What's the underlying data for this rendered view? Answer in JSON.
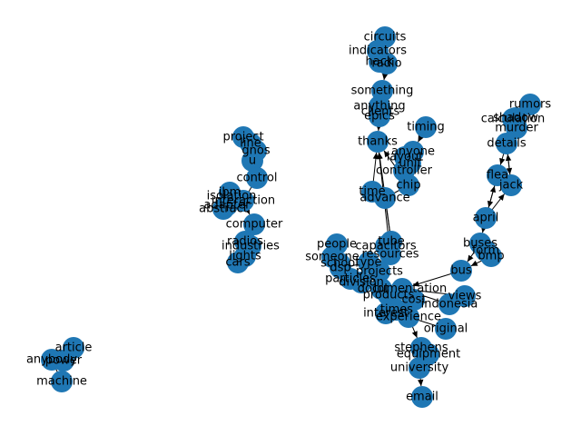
{
  "colors": {
    "node_fill": "#1f77b4",
    "edge": "#000000",
    "label": "#000000",
    "background": "#ffffff"
  },
  "graph": {
    "type": "directed-network",
    "nodes": [
      {
        "id": "circuits",
        "label": "circuits"
      },
      {
        "id": "indicators",
        "label": "indicators"
      },
      {
        "id": "hack",
        "label": "hack"
      },
      {
        "id": "radio",
        "label": "radio"
      },
      {
        "id": "something",
        "label": "something"
      },
      {
        "id": "anything",
        "label": "anything"
      },
      {
        "id": "clients",
        "label": "clients"
      },
      {
        "id": "epics",
        "label": "epics"
      },
      {
        "id": "timing",
        "label": "timing"
      },
      {
        "id": "thanks",
        "label": "thanks"
      },
      {
        "id": "anyone",
        "label": "anyone"
      },
      {
        "id": "layout",
        "label": "layout"
      },
      {
        "id": "unit",
        "label": "unit"
      },
      {
        "id": "controller",
        "label": "controller"
      },
      {
        "id": "chip",
        "label": "chip"
      },
      {
        "id": "time",
        "label": "time"
      },
      {
        "id": "advance",
        "label": "advance"
      },
      {
        "id": "rumors",
        "label": "rumors"
      },
      {
        "id": "calculation",
        "label": "calculation"
      },
      {
        "id": "shadow",
        "label": "shadow"
      },
      {
        "id": "murder",
        "label": "murder"
      },
      {
        "id": "details",
        "label": "details"
      },
      {
        "id": "flea",
        "label": "flea"
      },
      {
        "id": "jack",
        "label": "jack"
      },
      {
        "id": "april",
        "label": "april"
      },
      {
        "id": "buses",
        "label": "buses"
      },
      {
        "id": "form",
        "label": "form"
      },
      {
        "id": "bmp",
        "label": "bmp"
      },
      {
        "id": "bus",
        "label": "bus"
      },
      {
        "id": "project",
        "label": "project"
      },
      {
        "id": "line",
        "label": "line"
      },
      {
        "id": "gnos",
        "label": "gnos"
      },
      {
        "id": "u",
        "label": "u"
      },
      {
        "id": "control",
        "label": "control"
      },
      {
        "id": "ibm",
        "label": "ibm"
      },
      {
        "id": "isolation",
        "label": "isolation"
      },
      {
        "id": "interaction",
        "label": "interaction"
      },
      {
        "id": "adapter",
        "label": "adapter"
      },
      {
        "id": "abstract",
        "label": "abstract"
      },
      {
        "id": "computer",
        "label": "computer"
      },
      {
        "id": "radios",
        "label": "radios"
      },
      {
        "id": "industries",
        "label": "industries"
      },
      {
        "id": "lights",
        "label": "lights"
      },
      {
        "id": "cars",
        "label": "cars"
      },
      {
        "id": "people",
        "label": "people"
      },
      {
        "id": "tube",
        "label": "tube"
      },
      {
        "id": "capacitors",
        "label": "capacitors"
      },
      {
        "id": "resources",
        "label": "resources"
      },
      {
        "id": "someone",
        "label": "someone"
      },
      {
        "id": "school",
        "label": "school"
      },
      {
        "id": "dsp",
        "label": "dsp"
      },
      {
        "id": "type",
        "label": "type"
      },
      {
        "id": "projects",
        "label": "projects"
      },
      {
        "id": "particles",
        "label": "particles"
      },
      {
        "id": "division",
        "label": "division"
      },
      {
        "id": "documentation",
        "label": "documentation"
      },
      {
        "id": "lot",
        "label": "lot"
      },
      {
        "id": "views",
        "label": "views"
      },
      {
        "id": "products",
        "label": "products"
      },
      {
        "id": "cost",
        "label": "cost"
      },
      {
        "id": "indonesia",
        "label": "indonesia"
      },
      {
        "id": "times",
        "label": "times"
      },
      {
        "id": "interest",
        "label": "interest"
      },
      {
        "id": "experience",
        "label": "experience"
      },
      {
        "id": "original",
        "label": "original"
      },
      {
        "id": "stephens",
        "label": "stephens"
      },
      {
        "id": "equipment",
        "label": "equipment"
      },
      {
        "id": "university",
        "label": "university"
      },
      {
        "id": "email",
        "label": "email"
      },
      {
        "id": "article",
        "label": "article"
      },
      {
        "id": "anybody",
        "label": "anybody"
      },
      {
        "id": "power",
        "label": "power"
      },
      {
        "id": "machine",
        "label": "machine"
      }
    ],
    "edges": [
      {
        "source": "circuits",
        "target": "indicators",
        "arrow": false
      },
      {
        "source": "indicators",
        "target": "hack",
        "arrow": false
      },
      {
        "source": "hack",
        "target": "radio",
        "arrow": false
      },
      {
        "source": "radio",
        "target": "something",
        "arrow": true
      },
      {
        "source": "something",
        "target": "anything",
        "arrow": false
      },
      {
        "source": "anything",
        "target": "clients",
        "arrow": false
      },
      {
        "source": "clients",
        "target": "epics",
        "arrow": false
      },
      {
        "source": "epics",
        "target": "thanks",
        "arrow": true
      },
      {
        "source": "timing",
        "target": "anyone",
        "arrow": true
      },
      {
        "source": "anyone",
        "target": "layout",
        "arrow": false
      },
      {
        "source": "layout",
        "target": "unit",
        "arrow": false
      },
      {
        "source": "unit",
        "target": "controller",
        "arrow": false
      },
      {
        "source": "controller",
        "target": "chip",
        "arrow": false
      },
      {
        "source": "chip",
        "target": "thanks",
        "arrow": true
      },
      {
        "source": "chip",
        "target": "advance",
        "arrow": false
      },
      {
        "source": "time",
        "target": "thanks",
        "arrow": true
      },
      {
        "source": "time",
        "target": "advance",
        "arrow": false
      },
      {
        "source": "advance",
        "target": "tube",
        "arrow": false
      },
      {
        "source": "tube",
        "target": "thanks",
        "arrow": true
      },
      {
        "source": "resources",
        "target": "thanks",
        "arrow": true
      },
      {
        "source": "rumors",
        "target": "calculation",
        "arrow": false
      },
      {
        "source": "calculation",
        "target": "shadow",
        "arrow": false
      },
      {
        "source": "shadow",
        "target": "murder",
        "arrow": false
      },
      {
        "source": "murder",
        "target": "details",
        "arrow": false
      },
      {
        "source": "details",
        "target": "jack",
        "arrow": true
      },
      {
        "source": "jack",
        "target": "details",
        "arrow": true
      },
      {
        "source": "details",
        "target": "flea",
        "arrow": true
      },
      {
        "source": "flea",
        "target": "april",
        "arrow": true
      },
      {
        "source": "april",
        "target": "flea",
        "arrow": true
      },
      {
        "source": "april",
        "target": "jack",
        "arrow": true
      },
      {
        "source": "april",
        "target": "buses",
        "arrow": true
      },
      {
        "source": "buses",
        "target": "form",
        "arrow": false
      },
      {
        "source": "form",
        "target": "bmp",
        "arrow": false
      },
      {
        "source": "bmp",
        "target": "bus",
        "arrow": true
      },
      {
        "source": "buses",
        "target": "bus",
        "arrow": true
      },
      {
        "source": "bus",
        "target": "documentation",
        "arrow": true
      },
      {
        "source": "views",
        "target": "documentation",
        "arrow": false
      },
      {
        "source": "indonesia",
        "target": "documentation",
        "arrow": false
      },
      {
        "source": "project",
        "target": "line",
        "arrow": false
      },
      {
        "source": "line",
        "target": "gnos",
        "arrow": false
      },
      {
        "source": "gnos",
        "target": "u",
        "arrow": false
      },
      {
        "source": "u",
        "target": "control",
        "arrow": false
      },
      {
        "source": "control",
        "target": "interaction",
        "arrow": false
      },
      {
        "source": "ibm",
        "target": "isolation",
        "arrow": false
      },
      {
        "source": "isolation",
        "target": "interaction",
        "arrow": false
      },
      {
        "source": "interaction",
        "target": "adapter",
        "arrow": false
      },
      {
        "source": "adapter",
        "target": "abstract",
        "arrow": false
      },
      {
        "source": "interaction",
        "target": "computer",
        "arrow": true
      },
      {
        "source": "computer",
        "target": "radios",
        "arrow": false
      },
      {
        "source": "radios",
        "target": "industries",
        "arrow": false
      },
      {
        "source": "industries",
        "target": "lights",
        "arrow": false
      },
      {
        "source": "lights",
        "target": "cars",
        "arrow": false
      },
      {
        "source": "people",
        "target": "someone",
        "arrow": false
      },
      {
        "source": "someone",
        "target": "school",
        "arrow": false
      },
      {
        "source": "school",
        "target": "dsp",
        "arrow": false
      },
      {
        "source": "dsp",
        "target": "type",
        "arrow": false
      },
      {
        "source": "type",
        "target": "projects",
        "arrow": false
      },
      {
        "source": "capacitors",
        "target": "resources",
        "arrow": false
      },
      {
        "source": "resources",
        "target": "projects",
        "arrow": false
      },
      {
        "source": "projects",
        "target": "particles",
        "arrow": false
      },
      {
        "source": "particles",
        "target": "division",
        "arrow": false
      },
      {
        "source": "division",
        "target": "lot",
        "arrow": false
      },
      {
        "source": "lot",
        "target": "products",
        "arrow": false
      },
      {
        "source": "products",
        "target": "cost",
        "arrow": false
      },
      {
        "source": "cost",
        "target": "documentation",
        "arrow": false
      },
      {
        "source": "cost",
        "target": "times",
        "arrow": false
      },
      {
        "source": "times",
        "target": "interest",
        "arrow": false
      },
      {
        "source": "interest",
        "target": "experience",
        "arrow": false
      },
      {
        "source": "experience",
        "target": "original",
        "arrow": false
      },
      {
        "source": "experience",
        "target": "stephens",
        "arrow": true
      },
      {
        "source": "stephens",
        "target": "equipment",
        "arrow": false
      },
      {
        "source": "equipment",
        "target": "university",
        "arrow": false
      },
      {
        "source": "university",
        "target": "email",
        "arrow": true
      },
      {
        "source": "article",
        "target": "power",
        "arrow": false
      },
      {
        "source": "power",
        "target": "anybody",
        "arrow": false
      },
      {
        "source": "anybody",
        "target": "machine",
        "arrow": false
      }
    ]
  }
}
